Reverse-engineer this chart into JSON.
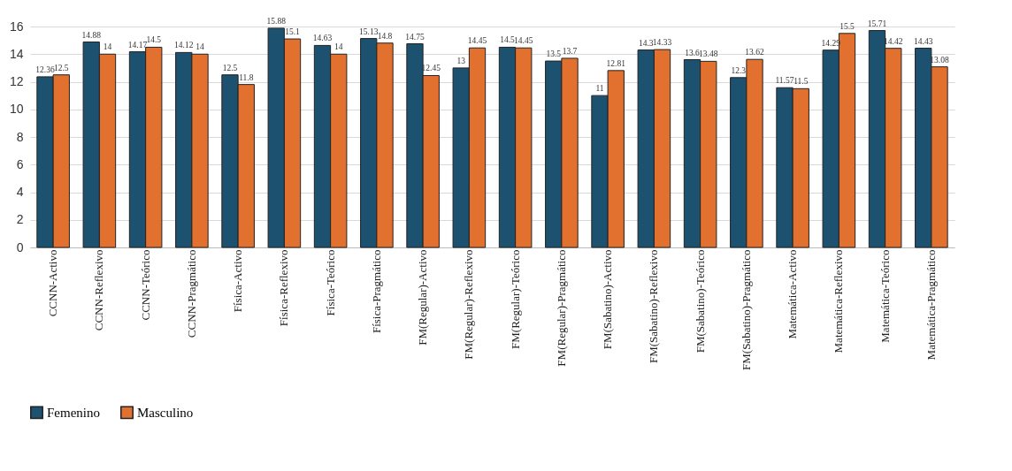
{
  "chart_data": {
    "type": "bar",
    "categories": [
      "CCNN-Activo",
      "CCNN-Reflexivo",
      "CCNN-Teórico",
      "CCNN-Pragmático",
      "Física-Activo",
      "Física-Reflexivo",
      "Física-Teórico",
      "Física-Pragmático",
      "FM(Regular)-Activo",
      "FM(Regular)-Reflexivo",
      "FM(Regular)-Teórico",
      "FM(Regular)-Pragmático",
      "FM(Sabatino)-Activo",
      "FM(Sabatino)-Reflexivo",
      "FM(Sabatino)-Teórico",
      "FM(Sabatino)-Pragmático",
      "Matemática-Activo",
      "Matemática-Reflexivo",
      "Matemática-Teórico",
      "Matemática-Pragmático"
    ],
    "series": [
      {
        "name": "Femenino",
        "color": "#1d5170",
        "values": [
          12.36,
          14.88,
          14.17,
          14.12,
          12.5,
          15.88,
          14.63,
          15.13,
          14.75,
          13,
          14.5,
          13.5,
          11,
          14.3,
          13.6,
          12.3,
          11.57,
          14.29,
          15.71,
          14.43
        ]
      },
      {
        "name": "Masculino",
        "color": "#e2702f",
        "values": [
          12.5,
          14,
          14.5,
          14,
          11.8,
          15.1,
          14,
          14.8,
          12.45,
          14.45,
          14.45,
          13.7,
          12.81,
          14.33,
          13.48,
          13.62,
          11.5,
          15.5,
          14.42,
          13.08
        ]
      }
    ],
    "ylim": [
      0,
      16
    ],
    "yticks": [
      0,
      2,
      4,
      6,
      8,
      10,
      12,
      14,
      16
    ],
    "grid": "y",
    "legend": "bottom",
    "data_labels": true
  }
}
